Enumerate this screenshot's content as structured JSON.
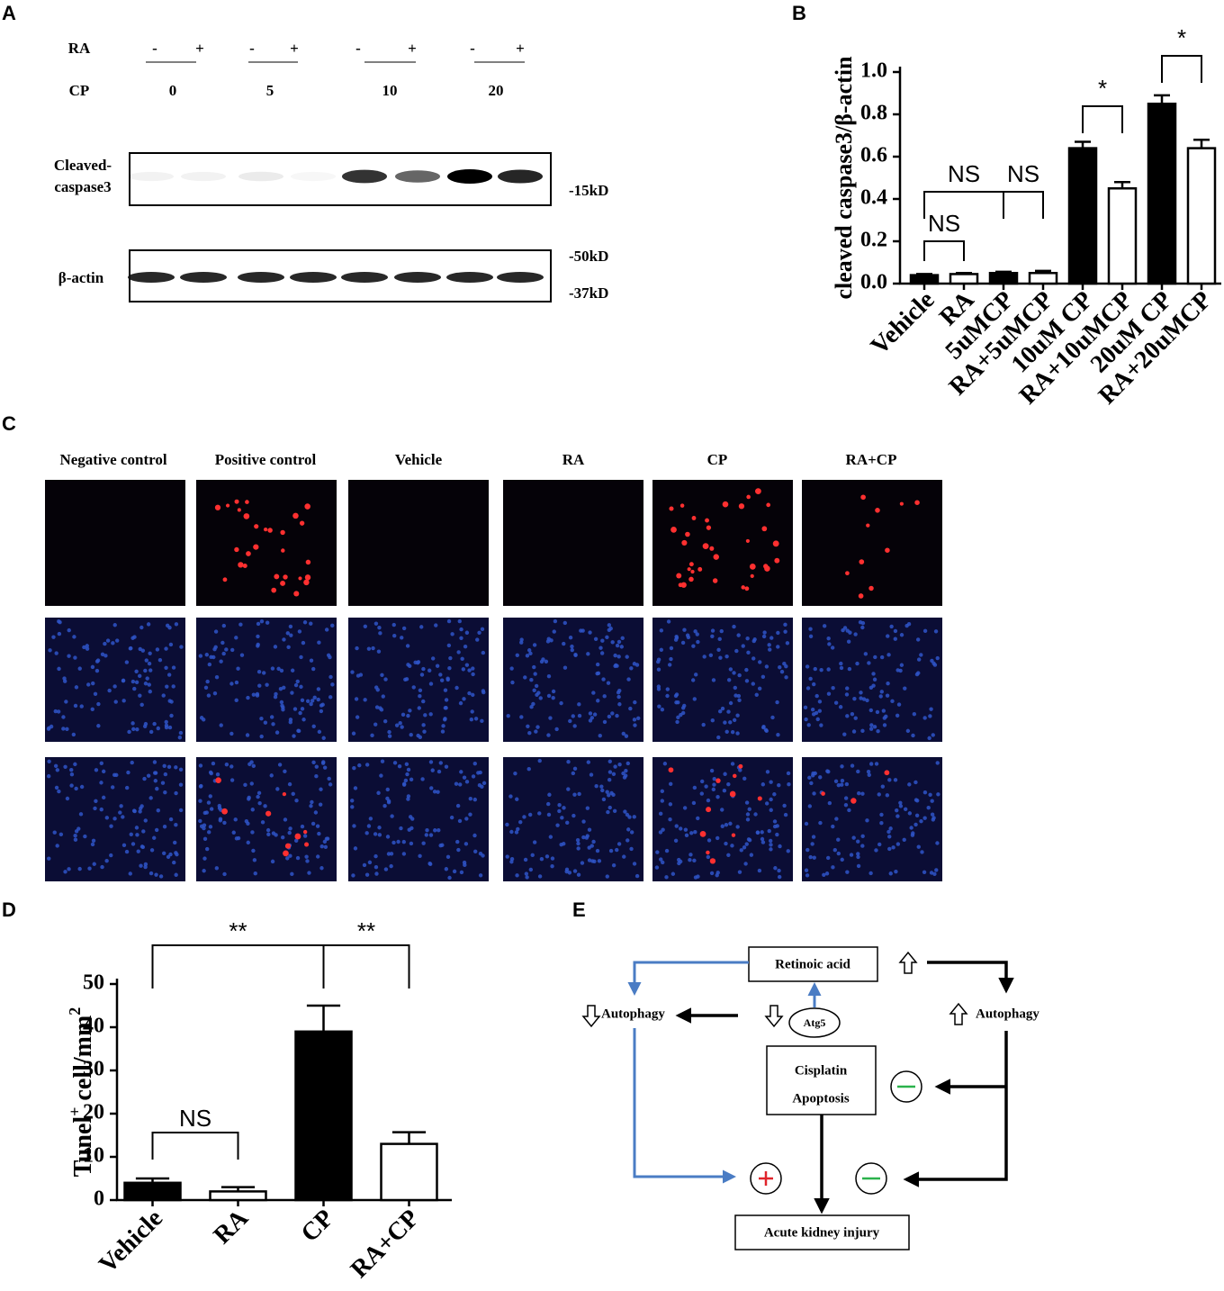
{
  "panels": [
    "A",
    "B",
    "C",
    "D",
    "E"
  ],
  "blot": {
    "ra_label": "RA",
    "ra_marks": [
      "-",
      "+",
      "-",
      "+",
      "-",
      "+",
      "-",
      "+"
    ],
    "cp_label": "CP",
    "cp_values": [
      0,
      5,
      10,
      20
    ],
    "rows": [
      {
        "label": [
          "Cleaved-",
          "caspase3"
        ]
      },
      {
        "label": [
          "β-actin"
        ]
      }
    ],
    "markers": [
      "-15kD",
      "-50kD",
      "-37kD"
    ]
  },
  "chart_data": [
    {
      "type": "bar",
      "y_label": "cleaved caspase3/β-actin",
      "categories": [
        "Vehicle",
        "RA",
        "5uMCP",
        "RA+5uMCP",
        "10uM CP",
        "RA+10uMCP",
        "20uM CP",
        "RA+20uMCP"
      ],
      "values": [
        0.04,
        0.045,
        0.05,
        0.05,
        0.64,
        0.45,
        0.85,
        0.64
      ],
      "errors": [
        0.005,
        0.005,
        0.006,
        0.01,
        0.03,
        0.03,
        0.04,
        0.04
      ],
      "colors": [
        "#000000",
        "#ffffff",
        "#000000",
        "#ffffff",
        "#000000",
        "#ffffff",
        "#000000",
        "#ffffff"
      ],
      "ylim": [
        0,
        1
      ],
      "yticks": [
        {
          "value": 0,
          "label": "0.0"
        },
        0.2,
        0.4,
        0.6,
        0.8,
        {
          "value": 1,
          "label": "1.0"
        }
      ],
      "comparisons": [
        {
          "label": "NS",
          "pair": [
            0,
            1
          ]
        },
        {
          "label": "NS",
          "pair": [
            0,
            2
          ]
        },
        {
          "label": "NS",
          "pair": [
            2,
            3
          ]
        },
        {
          "label": "*",
          "pair": [
            4,
            5
          ]
        },
        {
          "label": "*",
          "pair": [
            6,
            7
          ]
        }
      ]
    },
    {
      "type": "bar",
      "y_label": [
        "Tunel",
        "+",
        " cell/mm",
        "2"
      ],
      "categories": [
        "Vehicle",
        "RA",
        "CP",
        "RA+CP"
      ],
      "values": [
        4,
        2,
        39,
        13
      ],
      "errors": [
        1,
        1,
        6,
        2.7
      ],
      "colors": [
        "#000000",
        "#ffffff",
        "#000000",
        "#ffffff"
      ],
      "ylim": [
        0,
        50
      ],
      "yticks": [
        0,
        10,
        20,
        30,
        40,
        50
      ],
      "comparisons": [
        {
          "label": "**",
          "pair": [
            0,
            2
          ]
        },
        {
          "label": "**",
          "pair": [
            2,
            3
          ]
        },
        {
          "label": "NS",
          "pair": [
            0,
            1
          ]
        }
      ]
    }
  ],
  "microscopy": {
    "columns": [
      "Negative control",
      "Positive control",
      "Vehicle",
      "RA",
      "CP",
      "RA+CP"
    ]
  },
  "diagram": {
    "retinoic_acid": "Retinoic acid",
    "atg5": "Atg5",
    "autophagy_left": "Autophagy",
    "autophagy_right": "Autophagy",
    "cisplatin": "Cisplatin",
    "apoptosis": "Apoptosis",
    "aki": "Acute  kidney injury"
  }
}
